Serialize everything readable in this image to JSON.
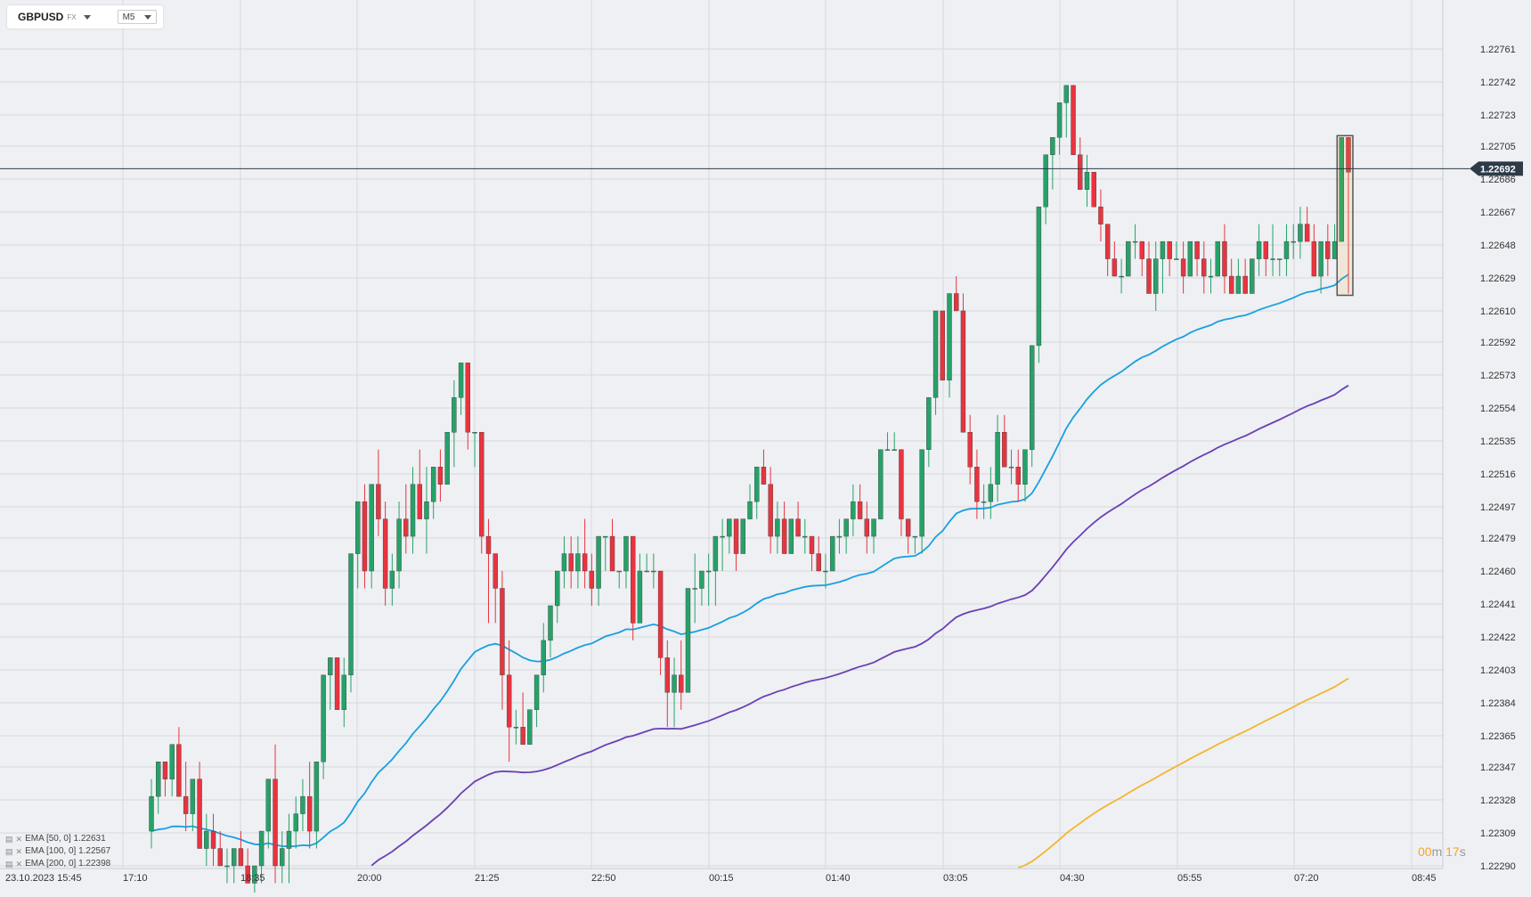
{
  "toolbar": {
    "symbol": "GBPUSD",
    "market": "FX",
    "timeframe": "M5"
  },
  "price_axis": {
    "labels": [
      "1.22761",
      "1.22742",
      "1.22723",
      "1.22705",
      "1.22686",
      "1.22667",
      "1.22648",
      "1.22629",
      "1.22610",
      "1.22592",
      "1.22573",
      "1.22554",
      "1.22535",
      "1.22516",
      "1.22497",
      "1.22479",
      "1.22460",
      "1.22441",
      "1.22422",
      "1.22403",
      "1.22384",
      "1.22365",
      "1.22347",
      "1.22328",
      "1.22309",
      "1.22290"
    ],
    "current_price": "1.22692"
  },
  "time_axis": {
    "labels": [
      "23.10.2023  15:45",
      "17:10",
      "18:35",
      "20:00",
      "21:25",
      "22:50",
      "00:15",
      "01:40",
      "03:05",
      "04:30",
      "05:55",
      "07:20",
      "08:45"
    ]
  },
  "indicators": [
    {
      "label": "EMA [50, 0] 1.22631",
      "color": "#1a9fe0"
    },
    {
      "label": "EMA [100, 0] 1.22567",
      "color": "#6b3fb5"
    },
    {
      "label": "EMA [200, 0] 1.22398",
      "color": "#f5b52e"
    }
  ],
  "countdown": {
    "minutes": "00",
    "minutes_unit": "m",
    "seconds": "17",
    "seconds_unit": "s"
  },
  "colors": {
    "up": "#26a269",
    "down": "#e8343f",
    "grid": "#d6d9de",
    "price_line": "#2d3b48"
  },
  "chart_data": {
    "type": "candlestick",
    "instrument": "GBPUSD",
    "timeframe": "M5",
    "ylim": [
      1.2229,
      1.22761
    ],
    "x_range": [
      "15:45",
      "08:45"
    ],
    "current_price": 1.22692,
    "visible_range_start": "17:10",
    "candles_ohlc": [
      [
        1.2231,
        1.2234,
        1.223,
        1.2233
      ],
      [
        1.2233,
        1.2235,
        1.2232,
        1.2235
      ],
      [
        1.2235,
        1.2235,
        1.2233,
        1.2234
      ],
      [
        1.2234,
        1.2236,
        1.2233,
        1.2236
      ],
      [
        1.2236,
        1.2237,
        1.2233,
        1.2233
      ],
      [
        1.2233,
        1.2235,
        1.2231,
        1.2232
      ],
      [
        1.2232,
        1.2234,
        1.2231,
        1.2234
      ],
      [
        1.2234,
        1.2235,
        1.223,
        1.223
      ],
      [
        1.223,
        1.2232,
        1.2229,
        1.2231
      ],
      [
        1.2231,
        1.2232,
        1.2229,
        1.223
      ],
      [
        1.223,
        1.2231,
        1.2229,
        1.2229
      ],
      [
        1.2229,
        1.223,
        1.2228,
        1.2229
      ],
      [
        1.2229,
        1.223,
        1.2228,
        1.223
      ],
      [
        1.223,
        1.2231,
        1.2229,
        1.2229
      ],
      [
        1.2229,
        1.223,
        1.2228,
        1.2228
      ],
      [
        1.2228,
        1.2229,
        1.2227,
        1.2229
      ],
      [
        1.2229,
        1.2231,
        1.2228,
        1.2231
      ],
      [
        1.2231,
        1.2234,
        1.223,
        1.2234
      ],
      [
        1.2234,
        1.2236,
        1.2228,
        1.2229
      ],
      [
        1.2229,
        1.2231,
        1.2228,
        1.223
      ],
      [
        1.223,
        1.2232,
        1.2228,
        1.2231
      ],
      [
        1.2231,
        1.2233,
        1.223,
        1.2232
      ],
      [
        1.2232,
        1.2234,
        1.2231,
        1.2233
      ],
      [
        1.2233,
        1.2235,
        1.223,
        1.2231
      ],
      [
        1.2231,
        1.2235,
        1.223,
        1.2235
      ],
      [
        1.2235,
        1.224,
        1.2234,
        1.224
      ],
      [
        1.224,
        1.2241,
        1.2238,
        1.2241
      ],
      [
        1.2241,
        1.2241,
        1.2238,
        1.2238
      ],
      [
        1.2238,
        1.2241,
        1.2237,
        1.224
      ],
      [
        1.224,
        1.2247,
        1.2239,
        1.2247
      ],
      [
        1.2247,
        1.225,
        1.2245,
        1.225
      ],
      [
        1.225,
        1.2251,
        1.2245,
        1.2246
      ],
      [
        1.2246,
        1.2251,
        1.2245,
        1.2251
      ],
      [
        1.2251,
        1.2253,
        1.2248,
        1.2249
      ],
      [
        1.2249,
        1.225,
        1.2244,
        1.2245
      ],
      [
        1.2245,
        1.2247,
        1.2244,
        1.2246
      ],
      [
        1.2246,
        1.225,
        1.2245,
        1.2249
      ],
      [
        1.2249,
        1.2251,
        1.2247,
        1.2248
      ],
      [
        1.2248,
        1.2252,
        1.2247,
        1.2251
      ],
      [
        1.2251,
        1.2253,
        1.2249,
        1.2249
      ],
      [
        1.2249,
        1.2252,
        1.2247,
        1.225
      ],
      [
        1.225,
        1.2252,
        1.2249,
        1.2252
      ],
      [
        1.2252,
        1.2253,
        1.225,
        1.2251
      ],
      [
        1.2251,
        1.2254,
        1.2251,
        1.2254
      ],
      [
        1.2254,
        1.2257,
        1.2252,
        1.2256
      ],
      [
        1.2256,
        1.2258,
        1.2255,
        1.2258
      ],
      [
        1.2258,
        1.2258,
        1.2253,
        1.2254
      ],
      [
        1.2254,
        1.2254,
        1.2252,
        1.2254
      ],
      [
        1.2254,
        1.2254,
        1.2247,
        1.2248
      ],
      [
        1.2248,
        1.2249,
        1.2243,
        1.2247
      ],
      [
        1.2247,
        1.2247,
        1.2243,
        1.2245
      ],
      [
        1.2245,
        1.2246,
        1.2238,
        1.224
      ],
      [
        1.224,
        1.2242,
        1.2235,
        1.2237
      ],
      [
        1.2237,
        1.2238,
        1.2236,
        1.2237
      ],
      [
        1.2237,
        1.2239,
        1.2236,
        1.2236
      ],
      [
        1.2236,
        1.2238,
        1.2236,
        1.2238
      ],
      [
        1.2238,
        1.224,
        1.2237,
        1.224
      ],
      [
        1.224,
        1.2243,
        1.2239,
        1.2242
      ],
      [
        1.2242,
        1.2244,
        1.2241,
        1.2244
      ],
      [
        1.2244,
        1.2246,
        1.2243,
        1.2246
      ],
      [
        1.2246,
        1.2248,
        1.2245,
        1.2247
      ],
      [
        1.2247,
        1.2248,
        1.2245,
        1.2246
      ],
      [
        1.2246,
        1.2248,
        1.2245,
        1.2247
      ],
      [
        1.2247,
        1.2249,
        1.2245,
        1.2246
      ],
      [
        1.2246,
        1.2247,
        1.2244,
        1.2245
      ],
      [
        1.2245,
        1.2248,
        1.2244,
        1.2248
      ],
      [
        1.2248,
        1.2248,
        1.2246,
        1.2248
      ],
      [
        1.2248,
        1.2249,
        1.2246,
        1.2246
      ],
      [
        1.2246,
        1.2246,
        1.2245,
        1.2246
      ],
      [
        1.2246,
        1.2248,
        1.2245,
        1.2248
      ],
      [
        1.2248,
        1.2248,
        1.2242,
        1.2243
      ],
      [
        1.2243,
        1.2247,
        1.2243,
        1.2246
      ],
      [
        1.2246,
        1.2247,
        1.2246,
        1.2246
      ],
      [
        1.2246,
        1.2247,
        1.2245,
        1.2246
      ],
      [
        1.2246,
        1.2246,
        1.224,
        1.2241
      ],
      [
        1.2241,
        1.2242,
        1.2237,
        1.2239
      ],
      [
        1.2239,
        1.2241,
        1.2237,
        1.224
      ],
      [
        1.224,
        1.2242,
        1.2238,
        1.2239
      ],
      [
        1.2239,
        1.2245,
        1.2239,
        1.2245
      ],
      [
        1.2245,
        1.2247,
        1.2243,
        1.2245
      ],
      [
        1.2245,
        1.2246,
        1.2244,
        1.2246
      ],
      [
        1.2246,
        1.2247,
        1.2244,
        1.2246
      ],
      [
        1.2246,
        1.2248,
        1.2244,
        1.2248
      ],
      [
        1.2248,
        1.2249,
        1.2246,
        1.2248
      ],
      [
        1.2248,
        1.2249,
        1.2247,
        1.2249
      ],
      [
        1.2249,
        1.2249,
        1.2246,
        1.2247
      ],
      [
        1.2247,
        1.2249,
        1.2247,
        1.2249
      ],
      [
        1.2249,
        1.2251,
        1.2249,
        1.225
      ],
      [
        1.225,
        1.2252,
        1.2249,
        1.2252
      ],
      [
        1.2252,
        1.2253,
        1.2251,
        1.2251
      ],
      [
        1.2251,
        1.2252,
        1.2247,
        1.2248
      ],
      [
        1.2248,
        1.225,
        1.2247,
        1.2249
      ],
      [
        1.2249,
        1.225,
        1.2247,
        1.2247
      ],
      [
        1.2247,
        1.2249,
        1.2247,
        1.2249
      ],
      [
        1.2249,
        1.225,
        1.2248,
        1.2248
      ],
      [
        1.2248,
        1.2249,
        1.2247,
        1.2248
      ],
      [
        1.2248,
        1.2248,
        1.2246,
        1.2247
      ],
      [
        1.2247,
        1.2248,
        1.2246,
        1.2246
      ],
      [
        1.2246,
        1.2247,
        1.2245,
        1.2246
      ],
      [
        1.2246,
        1.2248,
        1.2246,
        1.2248
      ],
      [
        1.2248,
        1.2249,
        1.2247,
        1.2248
      ],
      [
        1.2248,
        1.2249,
        1.2247,
        1.2249
      ],
      [
        1.2249,
        1.2251,
        1.2248,
        1.225
      ],
      [
        1.225,
        1.2251,
        1.2249,
        1.2249
      ],
      [
        1.2249,
        1.225,
        1.2247,
        1.2248
      ],
      [
        1.2248,
        1.2249,
        1.2247,
        1.2249
      ],
      [
        1.2249,
        1.2253,
        1.2249,
        1.2253
      ],
      [
        1.2253,
        1.2254,
        1.2253,
        1.2253
      ],
      [
        1.2253,
        1.2254,
        1.2253,
        1.2253
      ],
      [
        1.2253,
        1.2253,
        1.2248,
        1.2249
      ],
      [
        1.2249,
        1.2249,
        1.2247,
        1.2248
      ],
      [
        1.2248,
        1.2248,
        1.2247,
        1.2248
      ],
      [
        1.2248,
        1.2253,
        1.2247,
        1.2253
      ],
      [
        1.2253,
        1.2256,
        1.2252,
        1.2256
      ],
      [
        1.2256,
        1.2261,
        1.2255,
        1.2261
      ],
      [
        1.2261,
        1.2261,
        1.2257,
        1.2257
      ],
      [
        1.2257,
        1.2262,
        1.2256,
        1.2262
      ],
      [
        1.2262,
        1.2263,
        1.2261,
        1.2261
      ],
      [
        1.2261,
        1.2262,
        1.2254,
        1.2254
      ],
      [
        1.2254,
        1.2255,
        1.2251,
        1.2252
      ],
      [
        1.2252,
        1.2253,
        1.2249,
        1.225
      ],
      [
        1.225,
        1.2251,
        1.2249,
        1.225
      ],
      [
        1.225,
        1.2252,
        1.2249,
        1.2251
      ],
      [
        1.2251,
        1.2255,
        1.225,
        1.2254
      ],
      [
        1.2254,
        1.2255,
        1.2252,
        1.2252
      ],
      [
        1.2252,
        1.2253,
        1.2251,
        1.2252
      ],
      [
        1.2252,
        1.2253,
        1.225,
        1.2251
      ],
      [
        1.2251,
        1.2253,
        1.225,
        1.2253
      ],
      [
        1.2253,
        1.2259,
        1.2252,
        1.2259
      ],
      [
        1.2259,
        1.2267,
        1.2258,
        1.2267
      ],
      [
        1.2267,
        1.227,
        1.2266,
        1.227
      ],
      [
        1.227,
        1.2271,
        1.2268,
        1.2271
      ],
      [
        1.2271,
        1.2273,
        1.227,
        1.2273
      ],
      [
        1.2273,
        1.2274,
        1.2271,
        1.2274
      ],
      [
        1.2274,
        1.2274,
        1.227,
        1.227
      ],
      [
        1.227,
        1.2271,
        1.2268,
        1.2268
      ],
      [
        1.2268,
        1.227,
        1.2267,
        1.2269
      ],
      [
        1.2269,
        1.2269,
        1.2267,
        1.2267
      ],
      [
        1.2267,
        1.2268,
        1.2265,
        1.2266
      ],
      [
        1.2266,
        1.2266,
        1.2263,
        1.2264
      ],
      [
        1.2264,
        1.2265,
        1.2263,
        1.2263
      ],
      [
        1.2263,
        1.2264,
        1.2262,
        1.2263
      ],
      [
        1.2263,
        1.2265,
        1.2263,
        1.2265
      ],
      [
        1.2265,
        1.2266,
        1.2264,
        1.2265
      ],
      [
        1.2265,
        1.2265,
        1.2263,
        1.2264
      ],
      [
        1.2264,
        1.2265,
        1.2262,
        1.2262
      ],
      [
        1.2262,
        1.2265,
        1.2261,
        1.2264
      ],
      [
        1.2264,
        1.2265,
        1.2262,
        1.2265
      ],
      [
        1.2265,
        1.2265,
        1.2263,
        1.2264
      ],
      [
        1.2264,
        1.2265,
        1.2264,
        1.2264
      ],
      [
        1.2264,
        1.2265,
        1.2262,
        1.2263
      ],
      [
        1.2263,
        1.2265,
        1.2263,
        1.2265
      ],
      [
        1.2265,
        1.2265,
        1.2263,
        1.2264
      ],
      [
        1.2264,
        1.2265,
        1.2262,
        1.2263
      ],
      [
        1.2263,
        1.2264,
        1.2262,
        1.2263
      ],
      [
        1.2263,
        1.2265,
        1.2263,
        1.2265
      ],
      [
        1.2265,
        1.2266,
        1.2262,
        1.2263
      ],
      [
        1.2263,
        1.2264,
        1.2262,
        1.2262
      ],
      [
        1.2262,
        1.2264,
        1.2262,
        1.2263
      ],
      [
        1.2263,
        1.2264,
        1.2262,
        1.2262
      ],
      [
        1.2262,
        1.2264,
        1.2262,
        1.2264
      ],
      [
        1.2264,
        1.2266,
        1.2263,
        1.2265
      ],
      [
        1.2265,
        1.2265,
        1.2263,
        1.2264
      ],
      [
        1.2264,
        1.2266,
        1.2263,
        1.2264
      ],
      [
        1.2264,
        1.2264,
        1.2263,
        1.2264
      ],
      [
        1.2264,
        1.2266,
        1.2263,
        1.2265
      ],
      [
        1.2265,
        1.2266,
        1.2264,
        1.2265
      ],
      [
        1.2265,
        1.2267,
        1.2264,
        1.2266
      ],
      [
        1.2266,
        1.2267,
        1.2265,
        1.2265
      ],
      [
        1.2265,
        1.2266,
        1.2263,
        1.2263
      ],
      [
        1.2263,
        1.2265,
        1.2262,
        1.2265
      ],
      [
        1.2265,
        1.2266,
        1.2263,
        1.2264
      ],
      [
        1.2264,
        1.2266,
        1.2264,
        1.2265
      ],
      [
        1.2265,
        1.2271,
        1.2265,
        1.2271
      ],
      [
        1.2271,
        1.2271,
        1.2262,
        1.2269
      ]
    ],
    "ema": [
      {
        "name": "EMA [50, 0]",
        "last": 1.22631,
        "color": "#1a9fe0"
      },
      {
        "name": "EMA [100, 0]",
        "last": 1.22567,
        "color": "#6b3fb5"
      },
      {
        "name": "EMA [200, 0]",
        "last": 1.22398,
        "color": "#f5b52e"
      }
    ],
    "grid": true
  }
}
